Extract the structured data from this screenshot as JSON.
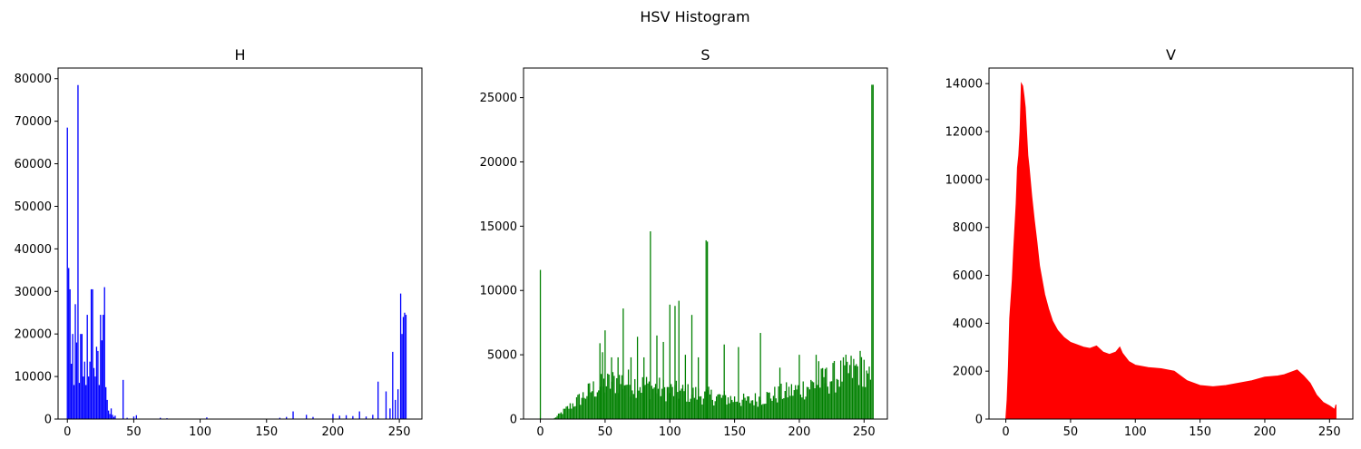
{
  "figure": {
    "title": "HSV Histogram"
  },
  "chart_data": [
    {
      "type": "bar",
      "title": "H",
      "color": "#0000ff",
      "xlim": [
        -7,
        267
      ],
      "ylim": [
        0,
        82500
      ],
      "xticks": [
        0,
        50,
        100,
        150,
        200,
        250
      ],
      "yticks": [
        0,
        10000,
        20000,
        30000,
        40000,
        50000,
        60000,
        70000,
        80000
      ],
      "bins": [
        [
          0,
          68500
        ],
        [
          1,
          35500
        ],
        [
          2,
          30500
        ],
        [
          3,
          13000
        ],
        [
          4,
          20000
        ],
        [
          5,
          8000
        ],
        [
          6,
          27000
        ],
        [
          7,
          18000
        ],
        [
          8,
          78500
        ],
        [
          9,
          8500
        ],
        [
          10,
          20000
        ],
        [
          11,
          20000
        ],
        [
          12,
          10000
        ],
        [
          13,
          13500
        ],
        [
          14,
          8000
        ],
        [
          15,
          24500
        ],
        [
          16,
          10000
        ],
        [
          17,
          13500
        ],
        [
          18,
          30500
        ],
        [
          19,
          30500
        ],
        [
          20,
          12000
        ],
        [
          21,
          10000
        ],
        [
          22,
          17000
        ],
        [
          23,
          16000
        ],
        [
          24,
          8000
        ],
        [
          25,
          24500
        ],
        [
          26,
          18500
        ],
        [
          27,
          24500
        ],
        [
          28,
          31000
        ],
        [
          29,
          7500
        ],
        [
          30,
          4500
        ],
        [
          31,
          2000
        ],
        [
          32,
          1200
        ],
        [
          33,
          2500
        ],
        [
          34,
          1000
        ],
        [
          35,
          500
        ],
        [
          36,
          800
        ],
        [
          42,
          9200
        ],
        [
          45,
          300
        ],
        [
          50,
          600
        ],
        [
          52,
          900
        ],
        [
          70,
          300
        ],
        [
          75,
          200
        ],
        [
          105,
          400
        ],
        [
          160,
          300
        ],
        [
          165,
          500
        ],
        [
          170,
          1800
        ],
        [
          180,
          1000
        ],
        [
          185,
          500
        ],
        [
          200,
          1200
        ],
        [
          205,
          800
        ],
        [
          210,
          900
        ],
        [
          215,
          700
        ],
        [
          220,
          1800
        ],
        [
          225,
          600
        ],
        [
          230,
          1000
        ],
        [
          234,
          8800
        ],
        [
          240,
          6500
        ],
        [
          243,
          2500
        ],
        [
          245,
          15800
        ],
        [
          247,
          4500
        ],
        [
          249,
          7000
        ],
        [
          251,
          29500
        ],
        [
          252,
          20000
        ],
        [
          253,
          24000
        ],
        [
          254,
          25000
        ],
        [
          255,
          24500
        ]
      ]
    },
    {
      "type": "bar",
      "title": "S",
      "color": "#008000",
      "xlim": [
        -13,
        268
      ],
      "ylim": [
        0,
        27300
      ],
      "xticks": [
        0,
        50,
        100,
        150,
        200,
        250
      ],
      "yticks": [
        0,
        5000,
        10000,
        15000,
        20000,
        25000
      ],
      "spikes": [
        [
          0,
          11600
        ],
        [
          46,
          5900
        ],
        [
          48,
          5200
        ],
        [
          50,
          6900
        ],
        [
          55,
          4800
        ],
        [
          60,
          4800
        ],
        [
          64,
          8600
        ],
        [
          70,
          4800
        ],
        [
          75,
          6400
        ],
        [
          80,
          4800
        ],
        [
          85,
          14600
        ],
        [
          90,
          6500
        ],
        [
          95,
          6000
        ],
        [
          100,
          8900
        ],
        [
          104,
          8800
        ],
        [
          107,
          9200
        ],
        [
          112,
          5000
        ],
        [
          117,
          8100
        ],
        [
          122,
          4800
        ],
        [
          128,
          13900
        ],
        [
          129,
          13800
        ],
        [
          142,
          5800
        ],
        [
          153,
          5600
        ],
        [
          170,
          6700
        ],
        [
          185,
          4000
        ],
        [
          200,
          5000
        ],
        [
          213,
          5000
        ],
        [
          215,
          4500
        ],
        [
          220,
          3900
        ],
        [
          256,
          26000
        ],
        [
          257,
          26000
        ]
      ]
    },
    {
      "type": "area",
      "title": "V",
      "color": "#ff0000",
      "xlim": [
        -13,
        268
      ],
      "ylim": [
        0,
        14650
      ],
      "xticks": [
        0,
        50,
        100,
        150,
        200,
        250
      ],
      "yticks": [
        0,
        2000,
        4000,
        6000,
        8000,
        10000,
        12000,
        14000
      ],
      "profile": [
        [
          0,
          0
        ],
        [
          1,
          800
        ],
        [
          2,
          2200
        ],
        [
          3,
          4200
        ],
        [
          4,
          5000
        ],
        [
          5,
          5800
        ],
        [
          6,
          7000
        ],
        [
          7,
          8000
        ],
        [
          8,
          9000
        ],
        [
          9,
          10500
        ],
        [
          10,
          11000
        ],
        [
          11,
          12000
        ],
        [
          12,
          14000
        ],
        [
          13,
          13900
        ],
        [
          14,
          13500
        ],
        [
          15,
          13000
        ],
        [
          16,
          12000
        ],
        [
          17,
          11000
        ],
        [
          18,
          10500
        ],
        [
          20,
          9300
        ],
        [
          22,
          8300
        ],
        [
          24,
          7400
        ],
        [
          26,
          6400
        ],
        [
          28,
          5800
        ],
        [
          30,
          5200
        ],
        [
          33,
          4600
        ],
        [
          36,
          4100
        ],
        [
          40,
          3700
        ],
        [
          45,
          3400
        ],
        [
          50,
          3200
        ],
        [
          55,
          3100
        ],
        [
          60,
          3000
        ],
        [
          65,
          2950
        ],
        [
          70,
          3050
        ],
        [
          75,
          2800
        ],
        [
          80,
          2700
        ],
        [
          85,
          2800
        ],
        [
          88,
          3000
        ],
        [
          90,
          2750
        ],
        [
          95,
          2400
        ],
        [
          100,
          2250
        ],
        [
          110,
          2150
        ],
        [
          120,
          2100
        ],
        [
          130,
          2000
        ],
        [
          140,
          1600
        ],
        [
          150,
          1400
        ],
        [
          160,
          1350
        ],
        [
          170,
          1400
        ],
        [
          180,
          1500
        ],
        [
          190,
          1600
        ],
        [
          200,
          1750
        ],
        [
          210,
          1800
        ],
        [
          215,
          1850
        ],
        [
          220,
          1950
        ],
        [
          225,
          2050
        ],
        [
          230,
          1800
        ],
        [
          235,
          1500
        ],
        [
          240,
          1000
        ],
        [
          245,
          700
        ],
        [
          250,
          550
        ],
        [
          254,
          400
        ],
        [
          255,
          600
        ]
      ]
    }
  ]
}
